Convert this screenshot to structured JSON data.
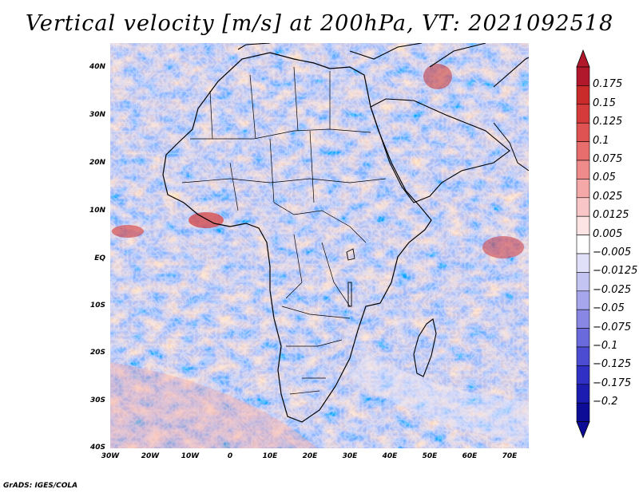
{
  "figure": {
    "title": "Vertical velocity [m/s] at 200hPa, VT: 2021092518",
    "credit": "GrADS: IGES/COLA",
    "variable": "Vertical velocity",
    "units": "m/s",
    "level": "200hPa",
    "valid_time": "2021092518"
  },
  "axes": {
    "lat_labels": [
      "40N",
      "30N",
      "20N",
      "10N",
      "EQ",
      "10S",
      "20S",
      "30S",
      "40S"
    ],
    "lon_labels": [
      "30W",
      "20W",
      "10W",
      "0",
      "10E",
      "20E",
      "30E",
      "40E",
      "50E",
      "60E",
      "70E"
    ],
    "lat_range": [
      -40,
      45
    ],
    "lon_range": [
      -30,
      75
    ]
  },
  "colorbar": {
    "levels": [
      "0.175",
      "0.15",
      "0.125",
      "0.1",
      "0.075",
      "0.05",
      "0.025",
      "0.0125",
      "0.005",
      "−0.005",
      "−0.0125",
      "−0.025",
      "−0.05",
      "−0.075",
      "−0.1",
      "−0.125",
      "−0.175",
      "−0.2"
    ],
    "colors": [
      "#b2182b",
      "#c92a2a",
      "#d63b3b",
      "#e05353",
      "#e86d6d",
      "#ef8b8b",
      "#f4a8a8",
      "#f8c6c6",
      "#fde4e4",
      "#ffffff",
      "#e0e0f8",
      "#c4c4f2",
      "#a6a6ec",
      "#8888e4",
      "#6a6adc",
      "#4c4cd2",
      "#3030c4",
      "#1c1cb0",
      "#0c0c96"
    ]
  }
}
